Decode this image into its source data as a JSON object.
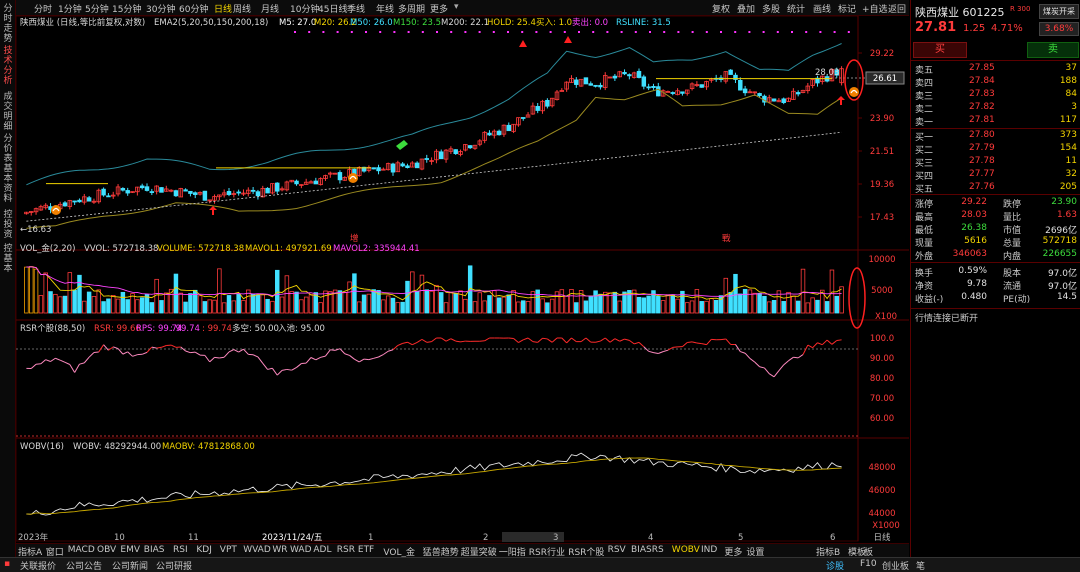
{
  "left_tabs": [
    "分时走势",
    "技术分析",
    "成交明细",
    "分价表",
    "基本资料",
    "控投资",
    "控基本"
  ],
  "periods": [
    "分时",
    "1分钟",
    "5分钟",
    "15分钟",
    "30分钟",
    "60分钟",
    "日线",
    "周线",
    "月线",
    "10分钟",
    "45日线",
    "季线",
    "年线",
    "多周期",
    "更多"
  ],
  "active_period": "日线",
  "toolbar": [
    "复权",
    "叠加",
    "多股",
    "统计",
    "画线",
    "标记"
  ],
  "toolbar_extra": [
    "+自选",
    "返回"
  ],
  "main_legend": {
    "title": "陕西煤业 (日线,等比前复权,对数)",
    "ema": "EMA2(5,20,50,150,200,18)",
    "m5": "M5: 27.0",
    "m20": "M20: 26.2",
    "m50": "M50: 26.0",
    "m150": "M150: 23.5",
    "m200": "M200: 22.1",
    "hold": "HOLD: 25.4",
    "buy": "买入: 1.0",
    "sell": "卖出: 0.0",
    "rsline": "RSLINE: 31.5"
  },
  "main_axis": [
    "29.22",
    "26.61",
    "23.90",
    "21.51",
    "19.36",
    "17.43"
  ],
  "price_box": "26.61",
  "price_labels": {
    "high": "28.03",
    "low": "16.63",
    "lowtag": "←16.63",
    "zeng1": "增",
    "zeng2": "增",
    "ji": "戰"
  },
  "vol_legend": {
    "name": "VOL_金(2,20)",
    "vvol": "VVOL: 572718.38",
    "volume": "VOLUME: 572718.38",
    "mavol1": "MAVOL1: 497921.69",
    "mavol2": "MAVOL2: 335944.41"
  },
  "vol_axis": [
    "10000",
    "5000"
  ],
  "vol_unit": "X100",
  "rsr_legend": {
    "name": "RSR个股(88,50)",
    "rps": "RPS: 99.74",
    "tv": ": 99.74",
    "rsr": "RSR: 99.66",
    "tw": ": 99.74",
    "dk": "多空: 50.00",
    "rc": "入池: 95.00"
  },
  "rsr_axis": [
    "100.0",
    "90.00",
    "80.00",
    "70.00",
    "60.00"
  ],
  "wobv_legend": {
    "name": "WOBV(16)",
    "wobv": "WOBV: 48292944.00",
    "maobv": "MAOBV: 47812868.00"
  },
  "wobv_axis": [
    "48000",
    "46000",
    "44000"
  ],
  "wobv_unit": "X1000",
  "x_axis": [
    {
      "l": "2023年",
      "x": 0
    },
    {
      "l": "10",
      "x": 96
    },
    {
      "l": "11",
      "x": 170
    },
    {
      "l": "2023/11/24/五",
      "x": 244
    },
    {
      "l": "1",
      "x": 350
    },
    {
      "l": "2",
      "x": 465
    },
    {
      "l": "3",
      "x": 535
    },
    {
      "l": "4",
      "x": 630
    },
    {
      "l": "5",
      "x": 720
    },
    {
      "l": "6",
      "x": 812
    }
  ],
  "bottom_tabs": [
    "指标A",
    "窗口",
    "MACD",
    "OBV",
    "EMV",
    "BIAS",
    "RSI",
    "KDJ",
    "VPT",
    "WVAD",
    "WR",
    "WAD",
    "ADL",
    "RSR ETF",
    "VOL_金",
    "猛兽趋势",
    "超量突破",
    "一阳指",
    "RSR行业",
    "RSR个股",
    "RSV",
    "BIASRS",
    "WOBV",
    "IND",
    "更多",
    "设置"
  ],
  "active_bottom": "WOBV",
  "bottom_right": [
    "指标B",
    "模板",
    "板"
  ],
  "status": [
    "关联报价",
    "公司公告",
    "公司新闻",
    "公司研报"
  ],
  "status_right": [
    "诊股",
    "F10",
    "创业板",
    "笔"
  ],
  "rp": {
    "name": "陕西煤业",
    "code": "601225",
    "tag": "R 300",
    "badge": "煤炭开采",
    "price": "27.81",
    "chg": "1.25",
    "pct": "4.71%",
    "badge_pct": "3.68%",
    "buy_btn": "买",
    "sell_btn": "卖",
    "asks": [
      [
        "卖五",
        "27.85",
        "37"
      ],
      [
        "卖四",
        "27.84",
        "188"
      ],
      [
        "卖三",
        "27.83",
        "84"
      ],
      [
        "卖二",
        "27.82",
        "3"
      ],
      [
        "卖一",
        "27.81",
        "117"
      ]
    ],
    "bids": [
      [
        "买一",
        "27.80",
        "373"
      ],
      [
        "买二",
        "27.79",
        "154"
      ],
      [
        "买三",
        "27.78",
        "11"
      ],
      [
        "买四",
        "27.77",
        "32"
      ],
      [
        "买五",
        "27.76",
        "205"
      ]
    ],
    "stats": [
      [
        "涨停",
        "29.22",
        "跌停",
        "23.90"
      ],
      [
        "最高",
        "28.03",
        "量比",
        "1.63"
      ],
      [
        "最低",
        "26.38",
        "市值",
        "2696亿"
      ],
      [
        "现量",
        "5616",
        "总量",
        "572718"
      ],
      [
        "外盘",
        "346063",
        "内盘",
        "226655"
      ]
    ],
    "fin": [
      [
        "换手",
        "0.59%",
        "股本",
        "97.0亿"
      ],
      [
        "净资",
        "9.78",
        "流通",
        "97.0亿"
      ],
      [
        "收益(-)",
        "0.480",
        "PE(动)",
        "14.5"
      ]
    ],
    "notice": "行情连接已断开"
  }
}
